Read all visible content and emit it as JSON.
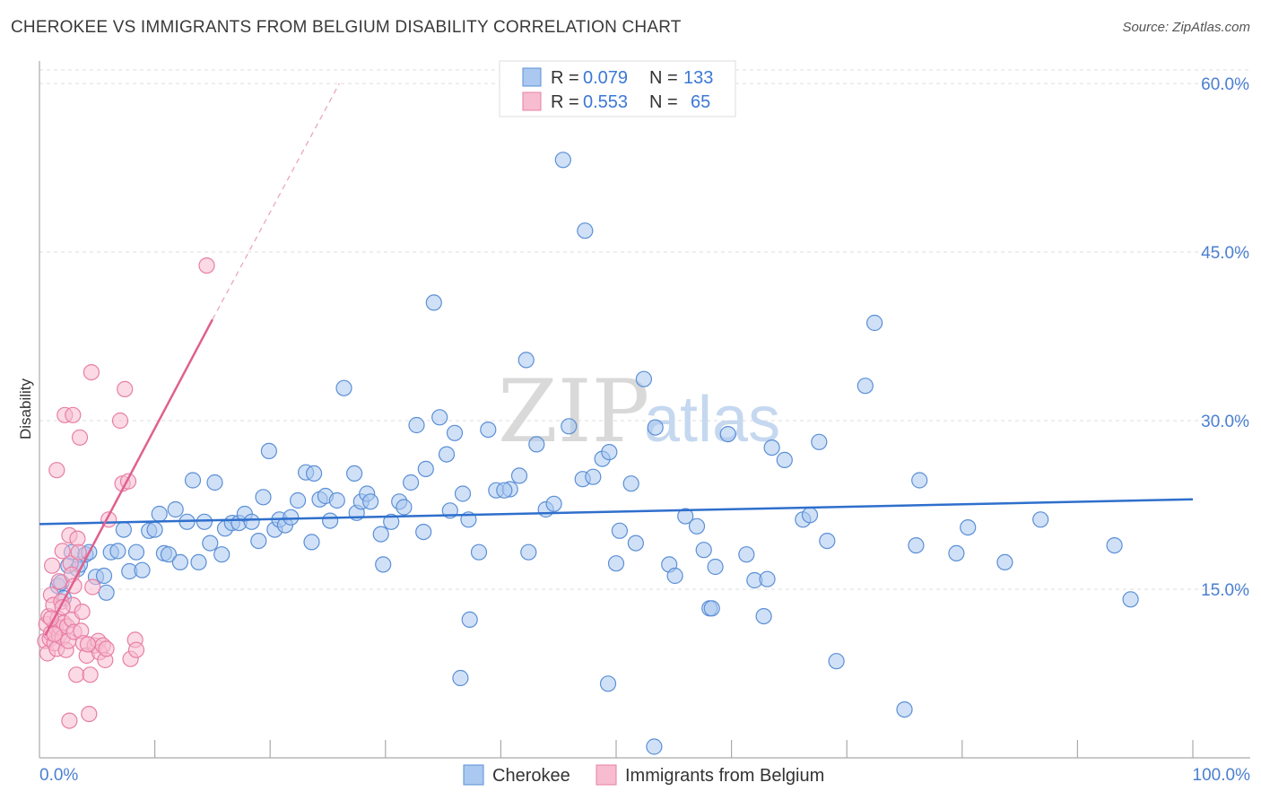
{
  "header": {
    "title": "CHEROKEE VS IMMIGRANTS FROM BELGIUM DISABILITY CORRELATION CHART",
    "source": "Source: ZipAtlas.com"
  },
  "watermark": {
    "zip": "ZIP",
    "atlas": "atlas"
  },
  "stats_legend": {
    "rows": [
      {
        "r_label": "R =",
        "r_value": "0.079",
        "n_label": "N =",
        "n_value": "133"
      },
      {
        "r_label": "R =",
        "r_value": "0.553",
        "n_label": "N =",
        "n_value": "65"
      }
    ]
  },
  "bottom_legend": {
    "items": [
      "Cherokee",
      "Immigrants from Belgium"
    ]
  },
  "colors": {
    "cherokee_fill": "#aac8f0",
    "cherokee_stroke": "#5b8fd6",
    "cherokee_line": "#2f6fcc",
    "belgium_fill": "#f7bcd0",
    "belgium_stroke": "#e77fa5",
    "belgium_line": "#e0608f",
    "axis_text": "#4a7fd0"
  },
  "chart_data": {
    "type": "scatter",
    "title": "CHEROKEE VS IMMIGRANTS FROM BELGIUM DISABILITY CORRELATION CHART",
    "xlabel": "",
    "ylabel": "Disability",
    "xlim": [
      0,
      100
    ],
    "ylim": [
      0,
      62
    ],
    "x_tick_labels": [
      "0.0%",
      "100.0%"
    ],
    "y_ticks": [
      15,
      30,
      45,
      60
    ],
    "y_tick_labels": [
      "15.0%",
      "30.0%",
      "45.0%",
      "60.0%"
    ],
    "grid": true,
    "legend_position": "top-center",
    "series": [
      {
        "name": "Cherokee",
        "R": 0.079,
        "N": 133,
        "trend": {
          "x": [
            0,
            100
          ],
          "y": [
            20.8,
            23.0
          ]
        },
        "points": [
          [
            1.6,
            15.3
          ],
          [
            1.9,
            15.6
          ],
          [
            2.1,
            14.2
          ],
          [
            2.5,
            17.1
          ],
          [
            2.8,
            18.3
          ],
          [
            3.3,
            16.8
          ],
          [
            3.5,
            17.2
          ],
          [
            4.0,
            18.1
          ],
          [
            4.3,
            18.3
          ],
          [
            4.9,
            16.1
          ],
          [
            5.6,
            16.2
          ],
          [
            5.8,
            14.7
          ],
          [
            6.2,
            18.3
          ],
          [
            6.8,
            18.4
          ],
          [
            7.3,
            20.3
          ],
          [
            7.8,
            16.6
          ],
          [
            8.4,
            18.3
          ],
          [
            8.9,
            16.7
          ],
          [
            9.5,
            20.2
          ],
          [
            10.0,
            20.3
          ],
          [
            10.4,
            21.7
          ],
          [
            10.8,
            18.2
          ],
          [
            11.2,
            18.1
          ],
          [
            11.8,
            22.1
          ],
          [
            12.2,
            17.4
          ],
          [
            12.8,
            21.0
          ],
          [
            13.3,
            24.7
          ],
          [
            13.8,
            17.4
          ],
          [
            14.3,
            21.0
          ],
          [
            14.8,
            19.1
          ],
          [
            15.2,
            24.5
          ],
          [
            15.8,
            18.1
          ],
          [
            16.1,
            20.4
          ],
          [
            16.7,
            20.9
          ],
          [
            17.3,
            20.9
          ],
          [
            17.8,
            21.7
          ],
          [
            18.4,
            21.0
          ],
          [
            19.0,
            19.3
          ],
          [
            19.4,
            23.2
          ],
          [
            19.9,
            27.3
          ],
          [
            20.4,
            20.3
          ],
          [
            20.8,
            21.2
          ],
          [
            21.3,
            20.7
          ],
          [
            21.8,
            21.4
          ],
          [
            22.4,
            22.9
          ],
          [
            23.1,
            25.4
          ],
          [
            23.6,
            19.2
          ],
          [
            23.8,
            25.3
          ],
          [
            24.3,
            23.0
          ],
          [
            24.8,
            23.3
          ],
          [
            25.2,
            21.1
          ],
          [
            25.8,
            22.9
          ],
          [
            26.4,
            32.9
          ],
          [
            27.3,
            25.3
          ],
          [
            27.5,
            21.8
          ],
          [
            27.9,
            22.8
          ],
          [
            28.4,
            23.5
          ],
          [
            28.7,
            22.8
          ],
          [
            29.6,
            19.9
          ],
          [
            29.8,
            17.2
          ],
          [
            30.5,
            21.0
          ],
          [
            31.2,
            22.8
          ],
          [
            31.6,
            22.3
          ],
          [
            32.2,
            24.5
          ],
          [
            32.7,
            29.6
          ],
          [
            33.3,
            20.1
          ],
          [
            33.5,
            25.7
          ],
          [
            34.2,
            40.5
          ],
          [
            34.7,
            30.3
          ],
          [
            35.3,
            27.0
          ],
          [
            35.6,
            22.0
          ],
          [
            36.0,
            28.9
          ],
          [
            36.7,
            23.5
          ],
          [
            37.2,
            21.2
          ],
          [
            38.1,
            18.3
          ],
          [
            38.9,
            29.2
          ],
          [
            39.6,
            23.8
          ],
          [
            40.8,
            23.9
          ],
          [
            41.6,
            25.1
          ],
          [
            42.2,
            35.4
          ],
          [
            42.4,
            18.3
          ],
          [
            43.1,
            27.9
          ],
          [
            43.9,
            22.1
          ],
          [
            44.6,
            22.6
          ],
          [
            45.4,
            53.2
          ],
          [
            45.9,
            29.5
          ],
          [
            47.1,
            24.8
          ],
          [
            47.3,
            46.9
          ],
          [
            48.0,
            25.0
          ],
          [
            48.8,
            26.6
          ],
          [
            49.4,
            27.2
          ],
          [
            50.0,
            17.3
          ],
          [
            50.3,
            20.2
          ],
          [
            51.3,
            24.4
          ],
          [
            51.7,
            19.1
          ],
          [
            52.4,
            33.7
          ],
          [
            53.4,
            29.4
          ],
          [
            54.6,
            17.2
          ],
          [
            55.1,
            16.2
          ],
          [
            56.0,
            21.5
          ],
          [
            57.0,
            20.6
          ],
          [
            57.6,
            18.5
          ],
          [
            58.1,
            13.3
          ],
          [
            58.6,
            17.0
          ],
          [
            59.7,
            28.8
          ],
          [
            61.3,
            18.1
          ],
          [
            62.0,
            15.8
          ],
          [
            62.8,
            12.6
          ],
          [
            63.1,
            15.9
          ],
          [
            63.5,
            27.6
          ],
          [
            66.2,
            21.2
          ],
          [
            66.8,
            21.6
          ],
          [
            67.6,
            28.1
          ],
          [
            68.3,
            19.3
          ],
          [
            69.1,
            8.6
          ],
          [
            71.6,
            33.1
          ],
          [
            72.4,
            38.7
          ],
          [
            75.0,
            4.3
          ],
          [
            76.0,
            18.9
          ],
          [
            76.3,
            24.7
          ],
          [
            79.5,
            18.2
          ],
          [
            80.5,
            20.5
          ],
          [
            83.7,
            17.4
          ],
          [
            86.8,
            21.2
          ],
          [
            93.2,
            18.9
          ],
          [
            94.6,
            14.1
          ],
          [
            36.5,
            7.1
          ],
          [
            49.3,
            6.6
          ],
          [
            53.3,
            1.0
          ],
          [
            37.3,
            12.3
          ],
          [
            58.3,
            13.3
          ],
          [
            64.6,
            26.5
          ],
          [
            40.3,
            23.8
          ]
        ]
      },
      {
        "name": "Immigrants from Belgium",
        "R": 0.553,
        "N": 65,
        "trend": {
          "x": [
            0.5,
            15.0
          ],
          "y": [
            10.9,
            39.0
          ]
        },
        "trend_dashed": {
          "x": [
            15.0,
            26.0
          ],
          "y": [
            39.0,
            60.0
          ]
        },
        "points": [
          [
            0.5,
            10.4
          ],
          [
            0.6,
            11.9
          ],
          [
            0.7,
            9.3
          ],
          [
            0.8,
            12.6
          ],
          [
            0.9,
            10.6
          ],
          [
            1.0,
            11.1
          ],
          [
            1.0,
            14.5
          ],
          [
            1.1,
            17.1
          ],
          [
            1.2,
            13.6
          ],
          [
            1.3,
            10.2
          ],
          [
            1.4,
            11.6
          ],
          [
            1.5,
            9.7
          ],
          [
            1.5,
            25.6
          ],
          [
            1.6,
            12.4
          ],
          [
            1.7,
            10.9
          ],
          [
            1.7,
            15.7
          ],
          [
            1.8,
            11.6
          ],
          [
            1.9,
            13.9
          ],
          [
            2.0,
            10.7
          ],
          [
            2.0,
            18.4
          ],
          [
            2.1,
            12.0
          ],
          [
            2.2,
            30.5
          ],
          [
            2.3,
            9.6
          ],
          [
            2.4,
            11.7
          ],
          [
            2.5,
            10.4
          ],
          [
            2.6,
            3.3
          ],
          [
            2.6,
            19.8
          ],
          [
            2.7,
            17.3
          ],
          [
            2.8,
            16.3
          ],
          [
            2.8,
            12.3
          ],
          [
            2.9,
            13.6
          ],
          [
            3.0,
            11.2
          ],
          [
            3.0,
            15.3
          ],
          [
            3.2,
            7.4
          ],
          [
            3.3,
            19.5
          ],
          [
            3.4,
            18.3
          ],
          [
            3.5,
            28.5
          ],
          [
            3.6,
            11.3
          ],
          [
            3.7,
            13.0
          ],
          [
            3.8,
            10.2
          ],
          [
            4.1,
            9.1
          ],
          [
            4.3,
            3.9
          ],
          [
            4.4,
            7.4
          ],
          [
            4.5,
            34.3
          ],
          [
            4.6,
            15.2
          ],
          [
            4.8,
            10.0
          ],
          [
            5.1,
            10.4
          ],
          [
            5.2,
            9.4
          ],
          [
            5.5,
            10.0
          ],
          [
            5.7,
            8.7
          ],
          [
            5.8,
            9.7
          ],
          [
            6.0,
            21.2
          ],
          [
            7.0,
            30.0
          ],
          [
            7.2,
            24.4
          ],
          [
            7.4,
            32.8
          ],
          [
            7.7,
            24.6
          ],
          [
            7.9,
            8.8
          ],
          [
            8.3,
            10.5
          ],
          [
            8.4,
            9.6
          ],
          [
            2.9,
            30.5
          ],
          [
            14.5,
            43.8
          ],
          [
            1.0,
            12.4
          ],
          [
            1.3,
            11.0
          ],
          [
            2.0,
            13.4
          ],
          [
            4.2,
            10.1
          ]
        ]
      }
    ]
  }
}
